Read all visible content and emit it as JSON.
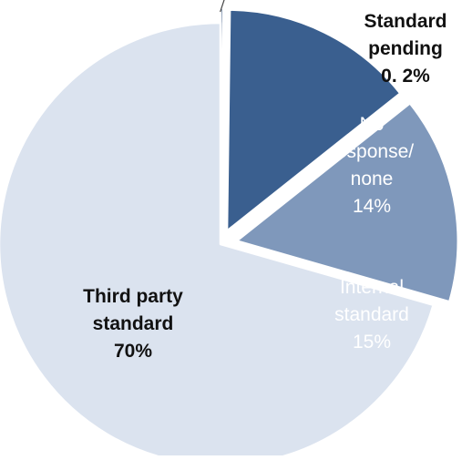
{
  "chart_data": {
    "type": "pie",
    "title": "",
    "slices": [
      {
        "name": "Standard pending",
        "label_lines": [
          "Standard",
          "pending",
          "0. 2%"
        ],
        "value": 0.2,
        "color": "#2e4d7b",
        "label_color": "#111111",
        "label_weight": "bold"
      },
      {
        "name": "No response/ none",
        "label_lines": [
          "No",
          "response/",
          "none",
          "14%"
        ],
        "value": 14,
        "color": "#3a5f8f",
        "label_color": "#ffffff",
        "label_weight": "normal"
      },
      {
        "name": "Internal standard",
        "label_lines": [
          "Internal",
          "standard",
          "15%"
        ],
        "value": 15,
        "color": "#7f98bb",
        "label_color": "#ffffff",
        "label_weight": "normal"
      },
      {
        "name": "Third party standard",
        "label_lines": [
          "Third party",
          "standard",
          "70%"
        ],
        "value": 70,
        "color": "#dbe3ef",
        "label_color": "#111111",
        "label_weight": "bold"
      }
    ],
    "legend": "none",
    "start_angle_deg": -90,
    "direction": "clockwise",
    "exploded_slices": [
      "Standard pending",
      "No response/ none",
      "Internal standard"
    ]
  }
}
